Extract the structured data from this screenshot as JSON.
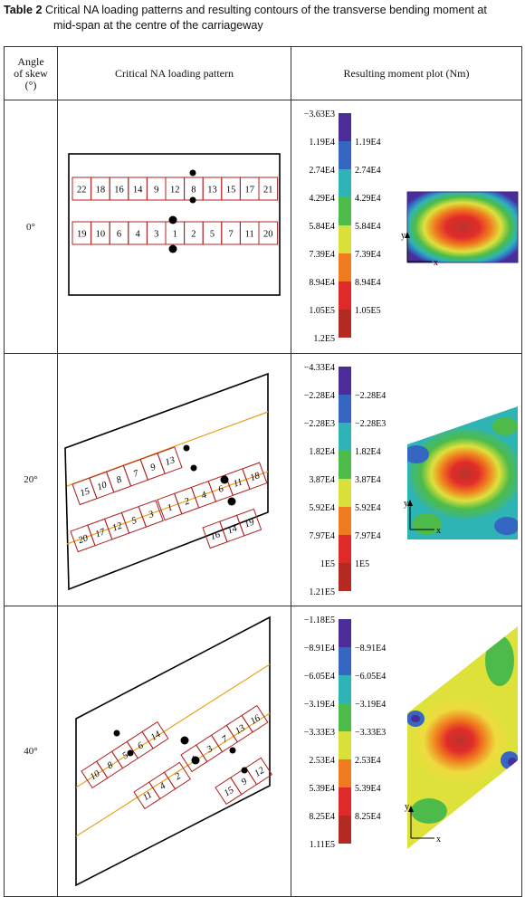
{
  "caption": {
    "label": "Table 2",
    "text": "Critical NA loading patterns and resulting contours of the transverse bending moment at",
    "text_cont": "mid-span at the centre of the carriageway"
  },
  "headers": {
    "angle_line1": "Angle",
    "angle_line2": "of skew",
    "angle_line3": "(°)",
    "pattern": "Critical NA loading pattern",
    "moment": "Resulting moment plot (Nm)"
  },
  "axis": {
    "x": "x",
    "y": "y"
  },
  "rows": [
    {
      "angle": "0°",
      "top_lane": [
        "22",
        "18",
        "16",
        "14",
        "9",
        "12",
        "8",
        "13",
        "15",
        "17",
        "21"
      ],
      "bottom_lane": [
        "19",
        "10",
        "6",
        "4",
        "3",
        "1",
        "2",
        "5",
        "7",
        "11",
        "20"
      ],
      "legend_left": [
        "−3.63E3",
        "1.19E4",
        "2.74E4",
        "4.29E4",
        "5.84E4",
        "7.39E4",
        "8.94E4",
        "1.05E5",
        "1.2E5"
      ],
      "legend_right": [
        "1.19E4",
        "2.74E4",
        "4.29E4",
        "5.84E4",
        "7.39E4",
        "8.94E4",
        "1.05E5"
      ],
      "legend_colors": [
        "#4b2d9a",
        "#3566c2",
        "#2fb4b6",
        "#4dbb4a",
        "#d9e03a",
        "#f07a1e",
        "#e02a2a",
        "#b22a22"
      ]
    },
    {
      "angle": "20°",
      "upper": [
        "15",
        "10",
        "8",
        "7",
        "9",
        "13"
      ],
      "middle": [
        "1",
        "2",
        "4",
        "6",
        "11",
        "18"
      ],
      "middle_left": [
        "3",
        "5",
        "12",
        "17",
        "20"
      ],
      "right_group": [
        "16",
        "14",
        "19"
      ],
      "legend_left": [
        "−4.33E4",
        "−2.28E4",
        "−2.28E3",
        "1.82E4",
        "3.87E4",
        "5.92E4",
        "7.97E4",
        "1E5",
        "1.21E5"
      ],
      "legend_right": [
        "−2.28E4",
        "−2.28E3",
        "1.82E4",
        "3.87E4",
        "5.92E4",
        "7.97E4",
        "1E5"
      ],
      "legend_colors": [
        "#4b2d9a",
        "#3566c2",
        "#2fb4b6",
        "#4dbb4a",
        "#d9e03a",
        "#f07a1e",
        "#e02a2a",
        "#b22a22"
      ]
    },
    {
      "angle": "40°",
      "upper": [
        "10",
        "8",
        "5",
        "6",
        "14"
      ],
      "middle": [
        "1",
        "3",
        "7",
        "13",
        "16"
      ],
      "lower_left": [
        "11",
        "4",
        "2"
      ],
      "right_group": [
        "15",
        "9",
        "12"
      ],
      "legend_left": [
        "−1.18E5",
        "−8.91E4",
        "−6.05E4",
        "−3.19E4",
        "−3.33E3",
        "2.53E4",
        "5.39E4",
        "8.25E4",
        "1.11E5"
      ],
      "legend_right": [
        "−8.91E4",
        "−6.05E4",
        "−3.19E4",
        "−3.33E3",
        "2.53E4",
        "5.39E4",
        "8.25E4"
      ],
      "legend_colors": [
        "#4b2d9a",
        "#3566c2",
        "#2fb4b6",
        "#4dbb4a",
        "#d9e03a",
        "#f07a1e",
        "#e02a2a",
        "#b22a22"
      ]
    }
  ]
}
